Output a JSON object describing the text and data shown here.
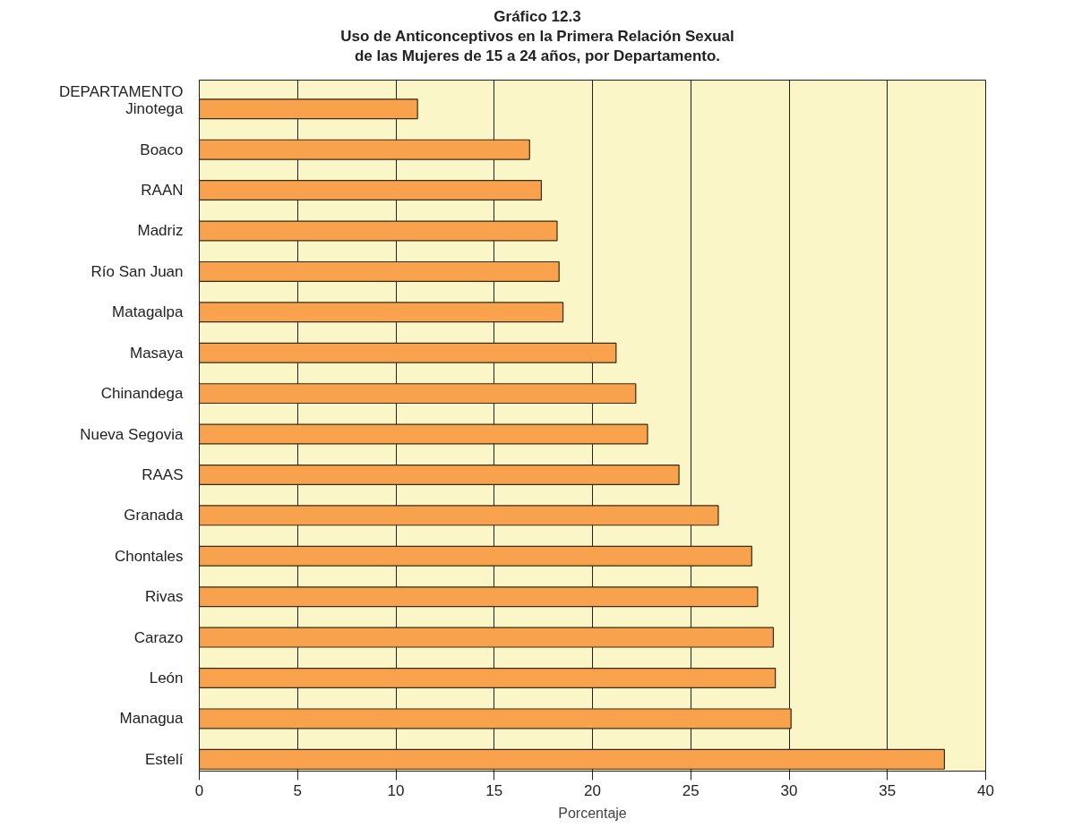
{
  "chart_data": {
    "type": "bar",
    "orientation": "horizontal",
    "title": "Gráfico 12.3\nUso de Anticonceptivos en la Primera Relación Sexual\nde las Mujeres de 15 a 24 años, por Departamento.",
    "ylabel": "DEPARTAMENTO",
    "xlabel": "Porcentaje",
    "categories": [
      "Jinotega",
      "Boaco",
      "RAAN",
      "Madriz",
      "Río San Juan",
      "Matagalpa",
      "Masaya",
      "Chinandega",
      "Nueva Segovia",
      "RAAS",
      "Granada",
      "Chontales",
      "Rivas",
      "Carazo",
      "León",
      "Managua",
      "Estelí"
    ],
    "values": [
      11.1,
      16.8,
      17.4,
      18.2,
      18.3,
      18.5,
      21.2,
      22.2,
      22.8,
      24.4,
      26.4,
      28.1,
      28.4,
      29.2,
      29.3,
      30.1,
      37.9
    ],
    "color": "#f9a24e",
    "xlim": [
      0,
      40
    ],
    "xticks": [
      0,
      5,
      10,
      15,
      20,
      25,
      30,
      35,
      40
    ],
    "grid": "x"
  }
}
